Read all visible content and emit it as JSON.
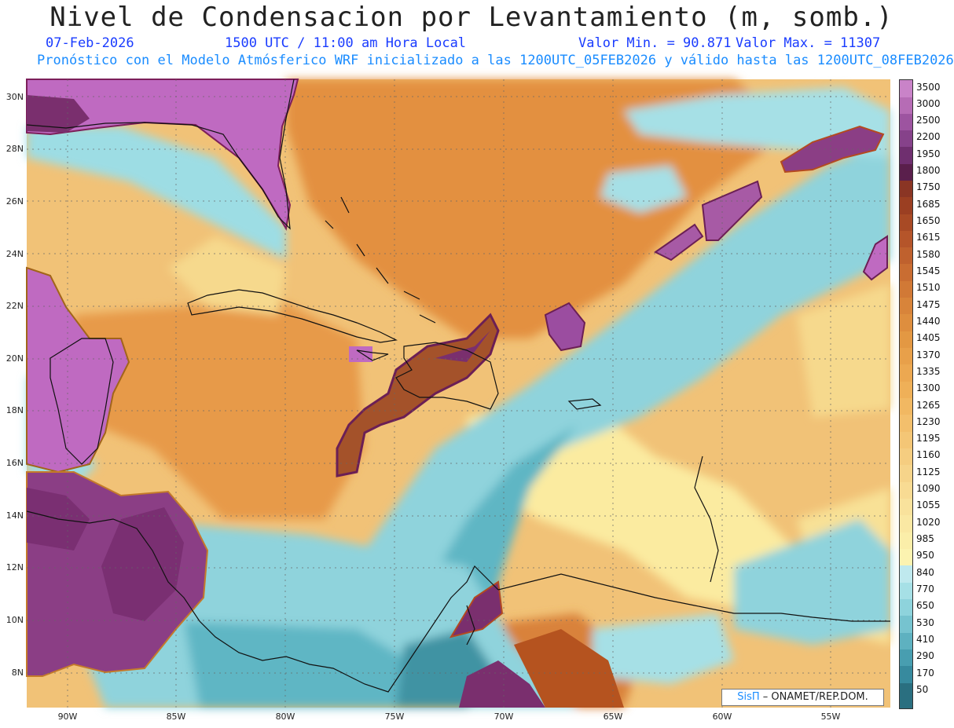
{
  "title": "Nivel de Condensacion por Levantamiento (m, somb.)",
  "header": {
    "date": "07-Feb-2026",
    "time": "1500 UTC / 11:00 am Hora Local",
    "valmin": "Valor Min. = 90.871",
    "valmax": "Valor Max. = 11307",
    "model_info": "Pronóstico con el Modelo Atmósferico WRF inicializado a las 1200UTC_05FEB2026 y válido hasta las  1200UTC_08FEB2026"
  },
  "axes": {
    "lat_labels": [
      "30N",
      "28N",
      "26N",
      "24N",
      "22N",
      "20N",
      "18N",
      "16N",
      "14N",
      "12N",
      "10N",
      "8N"
    ],
    "lon_labels": [
      "90W",
      "85W",
      "80W",
      "75W",
      "70W",
      "65W",
      "60W",
      "55W"
    ]
  },
  "legend": {
    "labels": [
      "3500",
      "3000",
      "2500",
      "2200",
      "1950",
      "1800",
      "1750",
      "1685",
      "1650",
      "1615",
      "1580",
      "1545",
      "1510",
      "1475",
      "1440",
      "1405",
      "1370",
      "1335",
      "1300",
      "1265",
      "1230",
      "1195",
      "1160",
      "1125",
      "1090",
      "1055",
      "1020",
      "985",
      "950",
      "840",
      "770",
      "650",
      "530",
      "410",
      "290",
      "170",
      "50"
    ],
    "colors": {
      "high": "#c06bc0",
      "purple": "#8a3a86",
      "dark_purple": "#6b1f55",
      "rust": "#b5531f",
      "orange": "#e08a3a",
      "light_orange": "#f2b35c",
      "sand": "#f6d88c",
      "pale_yellow": "#fbf0a6",
      "light_cyan": "#a6e0e6",
      "cyan": "#72c6d2",
      "teal": "#3b95a5",
      "dark_teal": "#2a6f80"
    }
  },
  "credit": {
    "sis": "SisΠ",
    "org": " – ONAMET/REP.DOM."
  }
}
